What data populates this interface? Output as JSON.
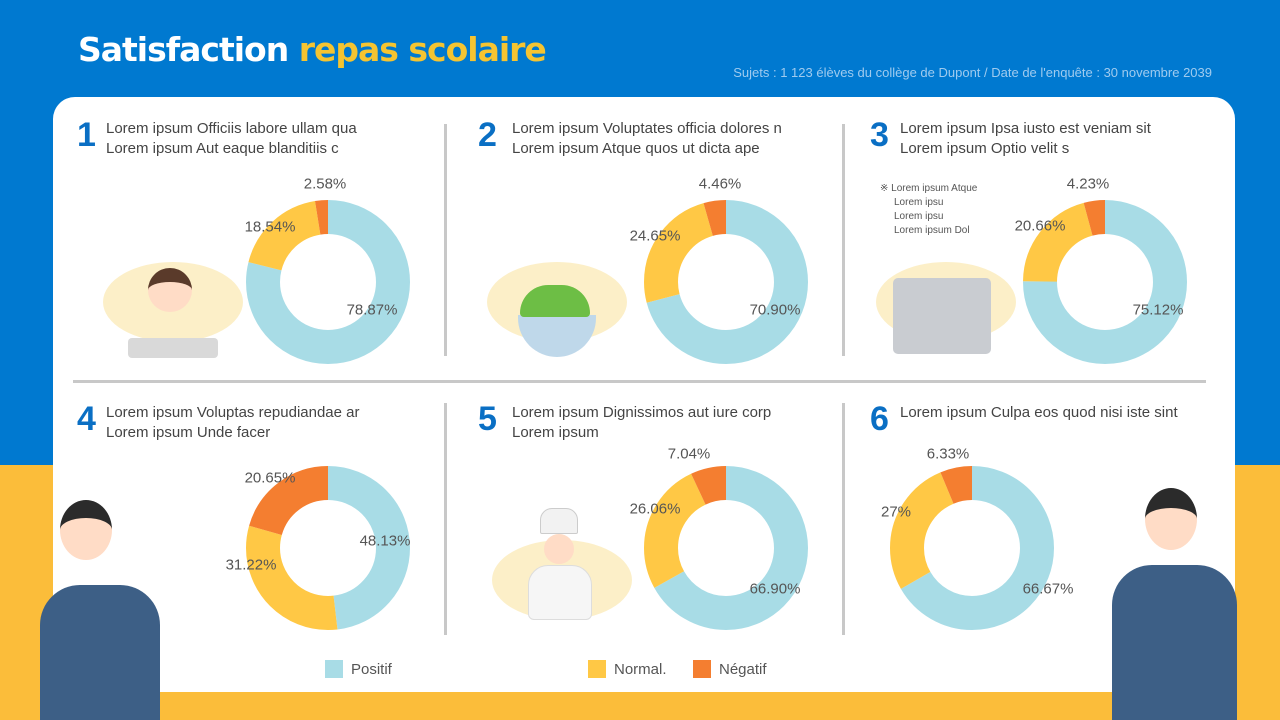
{
  "header": {
    "title_white": "Satisfaction",
    "title_yellow": "repas scolaire",
    "subtitle": "Sujets : 1 123 élèves du collège de Dupont / Date de l'enquête : 30 novembre 2039"
  },
  "colors": {
    "positif": "#A8DCE6",
    "normal": "#FFC845",
    "negatif": "#F47E30",
    "blue": "#0079D0",
    "yellow": "#FBBD3A"
  },
  "chart_data": [
    {
      "type": "pie",
      "number": "1",
      "title": [
        "Lorem ipsum Officiis labore ullam qua",
        "Lorem ipsum Aut eaque blanditiis c"
      ],
      "categories": [
        "Positif",
        "Normal.",
        "Négatif"
      ],
      "values": [
        78.87,
        18.54,
        2.58
      ],
      "labels": [
        "78.87%",
        "18.54%",
        "2.58%"
      ]
    },
    {
      "type": "pie",
      "number": "2",
      "title": [
        "Lorem ipsum Voluptates officia dolores n",
        "Lorem ipsum Atque quos ut dicta ape"
      ],
      "categories": [
        "Positif",
        "Normal.",
        "Négatif"
      ],
      "values": [
        70.9,
        24.65,
        4.46
      ],
      "labels": [
        "70.90%",
        "24.65%",
        "4.46%"
      ]
    },
    {
      "type": "pie",
      "number": "3",
      "title": [
        "Lorem ipsum Ipsa iusto est veniam sit",
        "Lorem ipsum Optio velit s"
      ],
      "note": [
        "※ Lorem ipsum Atque",
        "Lorem ipsu",
        "Lorem ipsu",
        "Lorem ipsum Dol"
      ],
      "categories": [
        "Positif",
        "Normal.",
        "Négatif"
      ],
      "values": [
        75.12,
        20.66,
        4.23
      ],
      "labels": [
        "75.12%",
        "20.66%",
        "4.23%"
      ]
    },
    {
      "type": "pie",
      "number": "4",
      "title": [
        "Lorem ipsum Voluptas repudiandae ar",
        "Lorem ipsum Unde facer"
      ],
      "categories": [
        "Positif",
        "Normal.",
        "Négatif"
      ],
      "values": [
        48.13,
        31.22,
        20.65
      ],
      "labels": [
        "48.13%",
        "31.22%",
        "20.65%"
      ]
    },
    {
      "type": "pie",
      "number": "5",
      "title": [
        "Lorem ipsum Dignissimos aut iure corp",
        "Lorem ipsum"
      ],
      "categories": [
        "Positif",
        "Normal.",
        "Négatif"
      ],
      "values": [
        66.9,
        26.06,
        7.04
      ],
      "labels": [
        "66.90%",
        "26.06%",
        "7.04%"
      ]
    },
    {
      "type": "pie",
      "number": "6",
      "title": [
        "Lorem ipsum Culpa eos quod nisi iste sint",
        ""
      ],
      "categories": [
        "Positif",
        "Normal.",
        "Négatif"
      ],
      "values": [
        66.67,
        27,
        6.33
      ],
      "labels": [
        "66.67%",
        "27%",
        "6.33%"
      ]
    }
  ],
  "legend": [
    "Positif",
    "Normal.",
    "Négatif"
  ]
}
